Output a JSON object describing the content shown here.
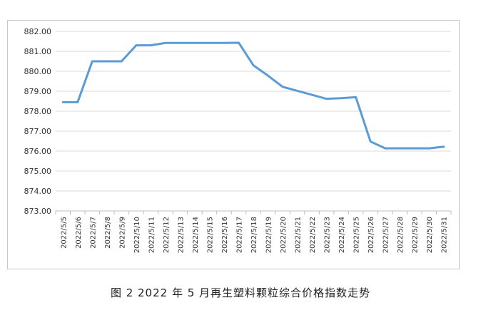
{
  "caption": "图 2  2022 年 5 月再生塑料颗粒综合价格指数走势",
  "colors": {
    "line": "#5b9bd5",
    "grid": "#d9d9d9",
    "axis": "#bfbfbf",
    "text": "#333333"
  },
  "chart_data": {
    "type": "line",
    "categories": [
      "2022/5/5",
      "2022/5/6",
      "2022/5/7",
      "2022/5/8",
      "2022/5/9",
      "2022/5/10",
      "2022/5/11",
      "2022/5/12",
      "2022/5/13",
      "2022/5/14",
      "2022/5/15",
      "2022/5/16",
      "2022/5/17",
      "2022/5/18",
      "2022/5/19",
      "2022/5/20",
      "2022/5/21",
      "2022/5/22",
      "2022/5/23",
      "2022/5/24",
      "2022/5/25",
      "2022/5/26",
      "2022/5/27",
      "2022/5/28",
      "2022/5/29",
      "2022/5/30",
      "2022/5/31"
    ],
    "series": [
      {
        "values": [
          878.45,
          878.45,
          880.5,
          880.5,
          880.5,
          881.3,
          881.3,
          881.42,
          881.42,
          881.42,
          881.42,
          881.42,
          881.43,
          880.3,
          879.78,
          879.22,
          879.02,
          878.82,
          878.62,
          878.65,
          878.7,
          876.48,
          876.14,
          876.14,
          876.14,
          876.14,
          876.22
        ]
      }
    ],
    "yticks": [
      "873.00",
      "874.00",
      "875.00",
      "876.00",
      "877.00",
      "878.00",
      "879.00",
      "880.00",
      "881.00",
      "882.00"
    ],
    "ylim": [
      873,
      882
    ],
    "grid": true,
    "legend": "none"
  }
}
